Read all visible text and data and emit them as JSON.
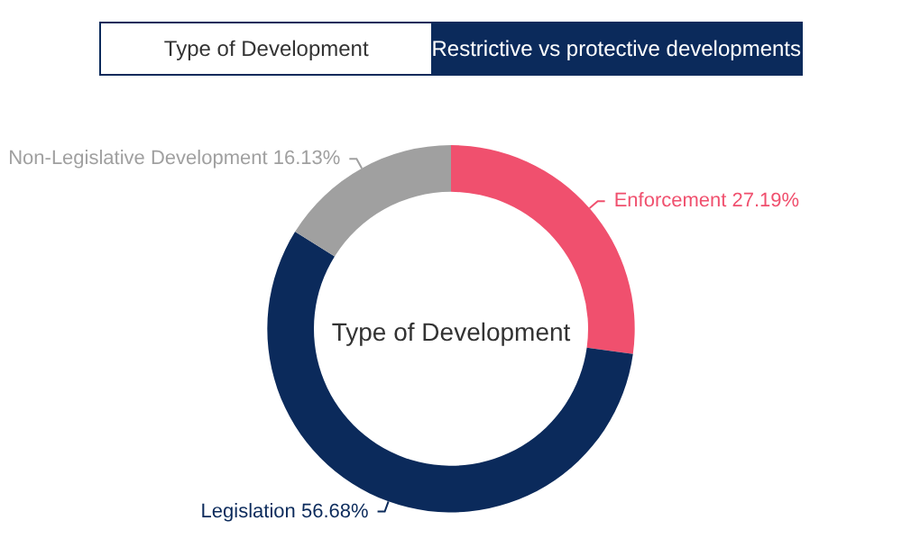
{
  "chart_data": {
    "type": "donut",
    "title": "Type of Development",
    "annotations": [
      "Type of Development",
      "Restrictive vs protective developments"
    ],
    "categories": [
      "Enforcement",
      "Legislation",
      "Non-Legislative Development"
    ],
    "values": [
      27.19,
      56.68,
      16.13
    ],
    "colors": [
      "#f0506e",
      "#0b2a5b",
      "#a0a0a0"
    ],
    "value_labels": [
      "27.19%",
      "56.68%",
      "16.13%"
    ],
    "legend": false
  }
}
